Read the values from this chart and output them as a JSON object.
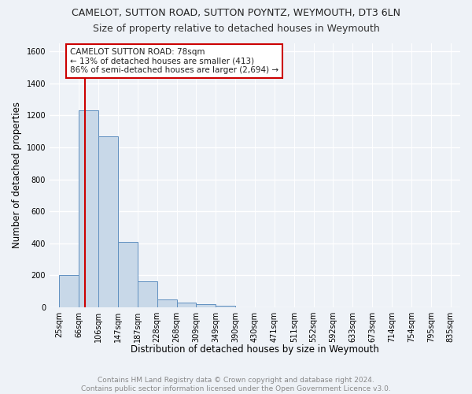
{
  "title": "CAMELOT, SUTTON ROAD, SUTTON POYNTZ, WEYMOUTH, DT3 6LN",
  "subtitle": "Size of property relative to detached houses in Weymouth",
  "xlabel": "Distribution of detached houses by size in Weymouth",
  "ylabel": "Number of detached properties",
  "bar_values": [
    203,
    1232,
    1068,
    410,
    163,
    50,
    28,
    17,
    10,
    0,
    0,
    0,
    0,
    0,
    0,
    0,
    0,
    0,
    0,
    0
  ],
  "bar_labels": [
    "25sqm",
    "66sqm",
    "106sqm",
    "147sqm",
    "187sqm",
    "228sqm",
    "268sqm",
    "309sqm",
    "349sqm",
    "390sqm",
    "430sqm",
    "471sqm",
    "511sqm",
    "552sqm",
    "592sqm",
    "633sqm",
    "673sqm",
    "714sqm",
    "754sqm",
    "795sqm",
    "835sqm"
  ],
  "bar_color": "#c8d8e8",
  "bar_edge_color": "#6090c0",
  "vline_color": "#cc0000",
  "annotation_text": "CAMELOT SUTTON ROAD: 78sqm\n← 13% of detached houses are smaller (413)\n86% of semi-detached houses are larger (2,694) →",
  "annotation_box_color": "#cc0000",
  "ylim": [
    0,
    1650
  ],
  "yticks": [
    0,
    200,
    400,
    600,
    800,
    1000,
    1200,
    1400,
    1600
  ],
  "footer_text": "Contains HM Land Registry data © Crown copyright and database right 2024.\nContains public sector information licensed under the Open Government Licence v3.0.",
  "bg_color": "#eef2f7",
  "grid_color": "#ffffff",
  "title_fontsize": 9,
  "subtitle_fontsize": 9,
  "axis_label_fontsize": 8.5,
  "tick_fontsize": 7,
  "footer_fontsize": 6.5
}
